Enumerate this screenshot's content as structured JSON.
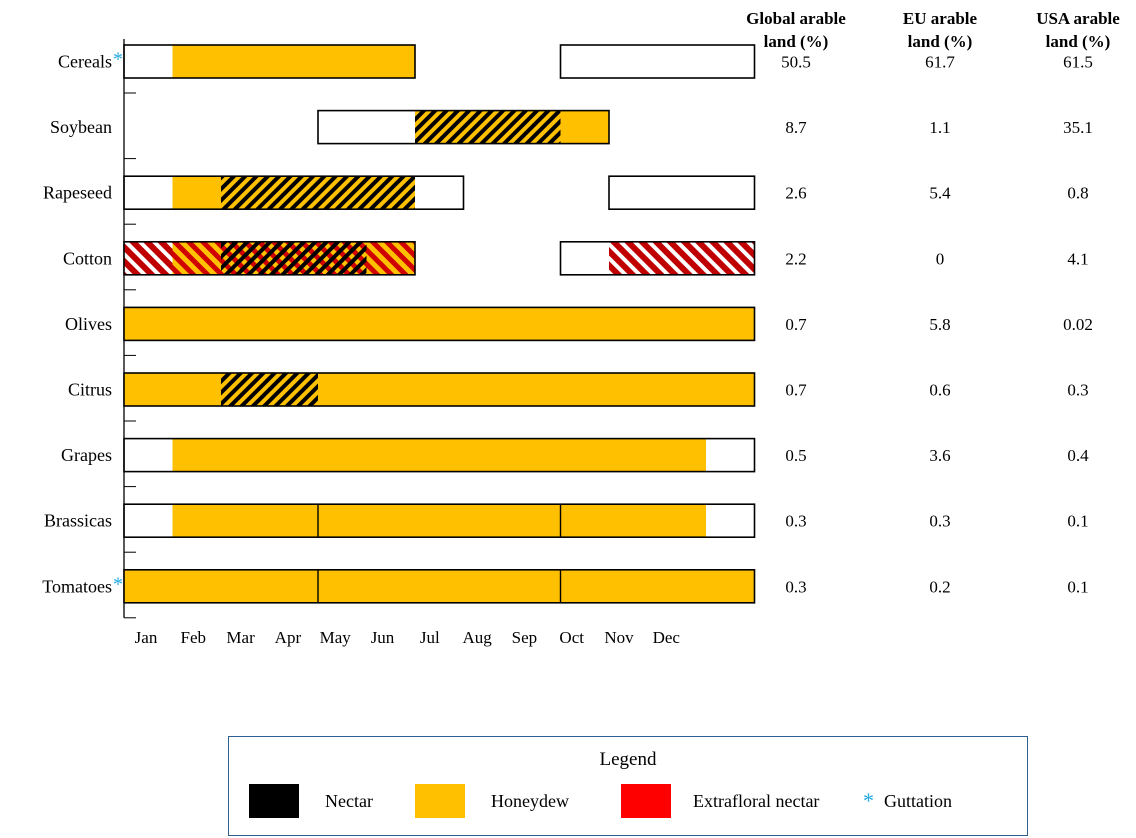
{
  "chart_data": {
    "type": "table",
    "months": [
      "Jan",
      "Feb",
      "Mar",
      "Apr",
      "May",
      "Jun",
      "Jul",
      "Aug",
      "Sep",
      "Oct",
      "Nov",
      "Dec"
    ],
    "columns": [
      {
        "key": "global",
        "label": [
          "Global arable",
          "land (%)"
        ]
      },
      {
        "key": "eu",
        "label": [
          "EU arable",
          "land (%)"
        ]
      },
      {
        "key": "usa",
        "label": [
          "USA arable",
          "land (%)"
        ]
      }
    ],
    "crops": [
      {
        "name": "Cereals",
        "guttation": true,
        "global": "50.5",
        "eu": "61.7",
        "usa": "61.5",
        "outlines": [
          [
            0,
            6
          ],
          [
            9,
            13
          ]
        ],
        "segments": [
          {
            "start": 1,
            "end": 6,
            "type": "honeydew"
          }
        ],
        "dividers": []
      },
      {
        "name": "Soybean",
        "guttation": false,
        "global": "8.7",
        "eu": "1.1",
        "usa": "35.1",
        "outlines": [
          [
            4,
            10
          ]
        ],
        "segments": [
          {
            "start": 6,
            "end": 9,
            "type": "nectar_honeydew"
          },
          {
            "start": 9,
            "end": 10,
            "type": "honeydew"
          }
        ],
        "dividers": []
      },
      {
        "name": "Rapeseed",
        "guttation": false,
        "global": "2.6",
        "eu": "5.4",
        "usa": "0.8",
        "outlines": [
          [
            0,
            7
          ],
          [
            10,
            13
          ]
        ],
        "segments": [
          {
            "start": 1,
            "end": 2,
            "type": "honeydew"
          },
          {
            "start": 2,
            "end": 6,
            "type": "nectar_honeydew"
          }
        ],
        "dividers": []
      },
      {
        "name": "Cotton",
        "guttation": false,
        "global": "2.2",
        "eu": "0",
        "usa": "4.1",
        "outlines": [
          [
            0,
            6
          ],
          [
            9,
            13
          ]
        ],
        "segments": [
          {
            "start": 0,
            "end": 1,
            "type": "extrafloral"
          },
          {
            "start": 1,
            "end": 2,
            "type": "extrafloral_honeydew"
          },
          {
            "start": 2,
            "end": 5,
            "type": "nectar_extrafloral_honeydew"
          },
          {
            "start": 5,
            "end": 6,
            "type": "extrafloral_honeydew"
          },
          {
            "start": 10,
            "end": 13,
            "type": "extrafloral"
          }
        ],
        "dividers": []
      },
      {
        "name": "Olives",
        "guttation": false,
        "global": "0.7",
        "eu": "5.8",
        "usa": "0.02",
        "outlines": [
          [
            0,
            13
          ]
        ],
        "segments": [
          {
            "start": 0,
            "end": 13,
            "type": "honeydew"
          }
        ],
        "dividers": []
      },
      {
        "name": "Citrus",
        "guttation": false,
        "global": "0.7",
        "eu": "0.6",
        "usa": "0.3",
        "outlines": [
          [
            0,
            13
          ]
        ],
        "segments": [
          {
            "start": 0,
            "end": 2,
            "type": "honeydew"
          },
          {
            "start": 2,
            "end": 4,
            "type": "nectar_honeydew"
          },
          {
            "start": 4,
            "end": 13,
            "type": "honeydew"
          }
        ],
        "dividers": []
      },
      {
        "name": "Grapes",
        "guttation": false,
        "global": "0.5",
        "eu": "3.6",
        "usa": "0.4",
        "outlines": [
          [
            0,
            13
          ]
        ],
        "segments": [
          {
            "start": 1,
            "end": 12,
            "type": "honeydew"
          }
        ],
        "dividers": []
      },
      {
        "name": "Brassicas",
        "guttation": false,
        "global": "0.3",
        "eu": "0.3",
        "usa": "0.1",
        "outlines": [
          [
            0,
            13
          ]
        ],
        "segments": [
          {
            "start": 1,
            "end": 12,
            "type": "honeydew"
          }
        ],
        "dividers": [
          4,
          9
        ]
      },
      {
        "name": "Tomatoes",
        "guttation": true,
        "global": "0.3",
        "eu": "0.2",
        "usa": "0.1",
        "outlines": [
          [
            0,
            13
          ]
        ],
        "segments": [
          {
            "start": 0,
            "end": 13,
            "type": "honeydew"
          }
        ],
        "dividers": [
          4,
          9
        ]
      }
    ],
    "colors": {
      "nectar": "#000000",
      "honeydew": "#ffc000",
      "extrafloral": "#ff0000",
      "guttation": "#1fa8e0",
      "outline": "#000000"
    }
  },
  "legend": {
    "title": "Legend",
    "nectar": "Nectar",
    "honeydew": "Honeydew",
    "extrafloral": "Extrafloral nectar",
    "guttation_symbol": "*",
    "guttation": "Guttation"
  }
}
